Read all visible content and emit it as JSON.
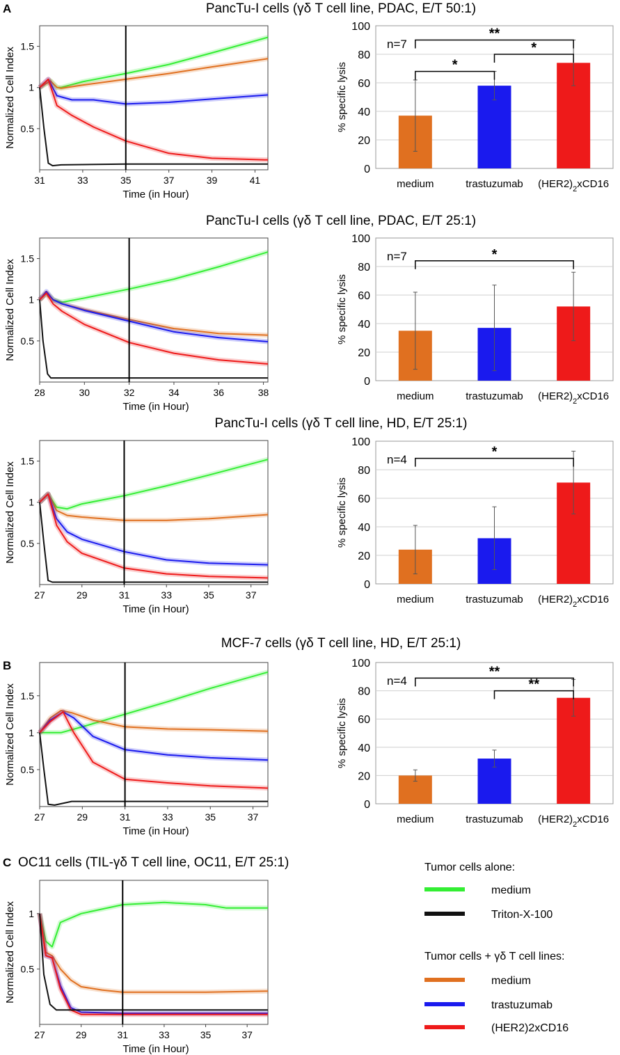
{
  "panel_labels": [
    "A",
    "B",
    "C"
  ],
  "legend": {
    "group1_title": "Tumor cells alone:",
    "group1_items": [
      {
        "label": "medium",
        "color": "#33ee33"
      },
      {
        "label": "Triton-X-100",
        "color": "#111111"
      }
    ],
    "group2_title": "Tumor cells + γδ T cell lines:",
    "group2_items": [
      {
        "label": "medium",
        "color": "#e07020"
      },
      {
        "label": "trastuzumab",
        "color": "#1a1aee"
      },
      {
        "label": "(HER2)2xCD16",
        "color": "#ee1a1a"
      }
    ]
  },
  "colors": {
    "green": "#33ee33",
    "orange": "#e07020",
    "blue": "#1a1aee",
    "red": "#ee1a1a",
    "black": "#111111"
  },
  "chart_data": [
    {
      "id": "A1",
      "title": "PancTu-I cells (γδ T cell line, PDAC, E/T 50:1)",
      "line": {
        "type": "line",
        "xlabel": "Time (in Hour)",
        "ylabel": "Normalized Cell Index",
        "xlim": [
          31,
          41.6
        ],
        "ylim": [
          0,
          1.75
        ],
        "xticks": [
          31,
          33,
          35,
          37,
          39,
          41
        ],
        "yticks": [
          0.5,
          1,
          1.5
        ],
        "marker_x": 35,
        "grid": false,
        "series": [
          {
            "name": "medium",
            "color": "green",
            "x": [
              31,
              31.5,
              31.8,
              32,
              33,
              35,
              37,
              39,
              41.6
            ],
            "y": [
              1.0,
              1.08,
              1.0,
              1.0,
              1.07,
              1.17,
              1.28,
              1.42,
              1.61
            ]
          },
          {
            "name": "+γδ medium",
            "color": "orange",
            "x": [
              31,
              31.5,
              31.8,
              32,
              33,
              35,
              37,
              39,
              41.6
            ],
            "y": [
              1.0,
              1.08,
              1.0,
              0.99,
              1.03,
              1.1,
              1.17,
              1.25,
              1.35
            ]
          },
          {
            "name": "+γδ trastuzumab",
            "color": "blue",
            "x": [
              31,
              31.4,
              31.8,
              32.5,
              33.5,
              35,
              37,
              39,
              41.6
            ],
            "y": [
              1.0,
              1.1,
              0.9,
              0.85,
              0.85,
              0.8,
              0.82,
              0.86,
              0.91
            ]
          },
          {
            "name": "+γδ (HER2)2xCD16",
            "color": "red",
            "x": [
              31,
              31.4,
              31.8,
              32.5,
              33.5,
              35,
              37,
              39,
              41.6
            ],
            "y": [
              1.0,
              1.1,
              0.78,
              0.66,
              0.52,
              0.35,
              0.2,
              0.14,
              0.12
            ]
          },
          {
            "name": "Triton-X-100",
            "color": "black",
            "x": [
              31,
              31.2,
              31.4,
              31.6,
              32,
              35,
              41.6
            ],
            "y": [
              1.0,
              0.5,
              0.08,
              0.05,
              0.06,
              0.07,
              0.07
            ]
          }
        ]
      },
      "bar": {
        "type": "bar",
        "ylabel": "% specific lysis",
        "ylim": [
          0,
          100
        ],
        "yticks": [
          0,
          20,
          40,
          60,
          80,
          100
        ],
        "categories": [
          "medium",
          "trastuzumab",
          "(HER2)2xCD16"
        ],
        "values": [
          37,
          58,
          74
        ],
        "errors": [
          25,
          10,
          16
        ],
        "colors": [
          "orange",
          "blue",
          "red"
        ],
        "n_label": "n=7",
        "brackets": [
          {
            "from": 0,
            "to": 2,
            "y": 90,
            "stars": "**"
          },
          {
            "from": 0,
            "to": 1,
            "y": 68,
            "stars": "*"
          },
          {
            "from": 1,
            "to": 2,
            "y": 80,
            "stars": "*"
          }
        ]
      }
    },
    {
      "id": "A2",
      "title": "PancTu-I cells (γδ T cell line, PDAC, E/T 25:1)",
      "line": {
        "type": "line",
        "xlabel": "Time (in Hour)",
        "ylabel": "Normalized Cell Index",
        "xlim": [
          28,
          38.2
        ],
        "ylim": [
          0,
          1.75
        ],
        "xticks": [
          28,
          30,
          32,
          34,
          36,
          38
        ],
        "yticks": [
          0.5,
          1,
          1.5
        ],
        "marker_x": 32,
        "grid": false,
        "series": [
          {
            "name": "medium",
            "color": "green",
            "x": [
              28,
              28.3,
              28.6,
              29,
              30,
              32,
              34,
              36,
              38.2
            ],
            "y": [
              1.0,
              1.08,
              1.0,
              0.97,
              1.02,
              1.13,
              1.25,
              1.4,
              1.58
            ]
          },
          {
            "name": "+γδ medium",
            "color": "orange",
            "x": [
              28,
              28.3,
              28.6,
              29,
              30,
              32,
              34,
              36,
              38.2
            ],
            "y": [
              1.0,
              1.08,
              1.0,
              0.95,
              0.88,
              0.76,
              0.65,
              0.59,
              0.57
            ]
          },
          {
            "name": "+γδ trastuzumab",
            "color": "blue",
            "x": [
              28,
              28.3,
              28.6,
              29,
              30,
              32,
              34,
              36,
              38.2
            ],
            "y": [
              1.0,
              1.1,
              1.0,
              0.95,
              0.87,
              0.74,
              0.61,
              0.54,
              0.49
            ]
          },
          {
            "name": "+γδ (HER2)2xCD16",
            "color": "red",
            "x": [
              28,
              28.3,
              28.6,
              29,
              30,
              32,
              34,
              36,
              38.2
            ],
            "y": [
              1.0,
              1.08,
              0.95,
              0.86,
              0.7,
              0.48,
              0.35,
              0.27,
              0.22
            ]
          },
          {
            "name": "Triton-X-100",
            "color": "black",
            "x": [
              28,
              28.15,
              28.35,
              28.5,
              29,
              32,
              38.2
            ],
            "y": [
              1.0,
              0.5,
              0.1,
              0.05,
              0.05,
              0.05,
              0.05
            ]
          }
        ]
      },
      "bar": {
        "type": "bar",
        "ylabel": "% specific lysis",
        "ylim": [
          0,
          100
        ],
        "yticks": [
          0,
          20,
          40,
          60,
          80,
          100
        ],
        "categories": [
          "medium",
          "trastuzumab",
          "(HER2)2xCD16"
        ],
        "values": [
          35,
          37,
          52
        ],
        "errors": [
          27,
          30,
          24
        ],
        "colors": [
          "orange",
          "blue",
          "red"
        ],
        "n_label": "n=7",
        "brackets": [
          {
            "from": 0,
            "to": 2,
            "y": 84,
            "stars": "*"
          }
        ]
      }
    },
    {
      "id": "A3",
      "title": "PancTu-I cells (γδ T cell line, HD, E/T 25:1)",
      "line": {
        "type": "line",
        "xlabel": "Time (in Hour)",
        "ylabel": "Normalized Cell Index",
        "xlim": [
          27,
          37.8
        ],
        "ylim": [
          0,
          1.75
        ],
        "xticks": [
          27,
          29,
          31,
          33,
          35,
          37
        ],
        "yticks": [
          0.5,
          1,
          1.5
        ],
        "marker_x": 31,
        "grid": false,
        "series": [
          {
            "name": "medium",
            "color": "green",
            "x": [
              27,
              27.4,
              27.8,
              28.3,
              29,
              31,
              33,
              35,
              37.8
            ],
            "y": [
              1.0,
              1.1,
              0.94,
              0.92,
              0.98,
              1.08,
              1.2,
              1.33,
              1.52
            ]
          },
          {
            "name": "+γδ medium",
            "color": "orange",
            "x": [
              27,
              27.4,
              27.8,
              28.3,
              29,
              31,
              33,
              35,
              37.8
            ],
            "y": [
              1.0,
              1.1,
              0.9,
              0.84,
              0.82,
              0.78,
              0.78,
              0.8,
              0.85
            ]
          },
          {
            "name": "+γδ trastuzumab",
            "color": "blue",
            "x": [
              27,
              27.4,
              27.8,
              28.3,
              29,
              31,
              33,
              35,
              37.8
            ],
            "y": [
              1.0,
              1.1,
              0.8,
              0.64,
              0.55,
              0.4,
              0.3,
              0.26,
              0.24
            ]
          },
          {
            "name": "+γδ (HER2)2xCD16",
            "color": "red",
            "x": [
              27,
              27.4,
              27.8,
              28.3,
              29,
              31,
              33,
              35,
              37.8
            ],
            "y": [
              1.0,
              1.1,
              0.72,
              0.52,
              0.38,
              0.2,
              0.13,
              0.1,
              0.08
            ]
          },
          {
            "name": "Triton-X-100",
            "color": "black",
            "x": [
              27,
              27.2,
              27.4,
              27.6,
              28,
              31,
              37.8
            ],
            "y": [
              1.0,
              0.5,
              0.05,
              0.03,
              0.03,
              0.03,
              0.03
            ]
          }
        ]
      },
      "bar": {
        "type": "bar",
        "ylabel": "% specific lysis",
        "ylim": [
          0,
          100
        ],
        "yticks": [
          0,
          20,
          40,
          60,
          80,
          100
        ],
        "categories": [
          "medium",
          "trastuzumab",
          "(HER2)2xCD16"
        ],
        "values": [
          24,
          32,
          71
        ],
        "errors": [
          17,
          22,
          22
        ],
        "colors": [
          "orange",
          "blue",
          "red"
        ],
        "n_label": "n=4",
        "brackets": [
          {
            "from": 0,
            "to": 2,
            "y": 88,
            "stars": "*"
          }
        ]
      }
    },
    {
      "id": "B",
      "title": "MCF-7 cells (γδ T cell line, HD, E/T 25:1)",
      "line": {
        "type": "line",
        "xlabel": "Time (in Hour)",
        "ylabel": "Normalized Cell Index",
        "xlim": [
          27,
          37.7
        ],
        "ylim": [
          0,
          1.95
        ],
        "xticks": [
          27,
          29,
          31,
          33,
          35,
          37
        ],
        "yticks": [
          0.5,
          1,
          1.5
        ],
        "marker_x": 31,
        "grid": false,
        "series": [
          {
            "name": "medium",
            "color": "green",
            "x": [
              27,
              28,
              29,
              31,
              33,
              35,
              37.7
            ],
            "y": [
              1.0,
              1.0,
              1.08,
              1.25,
              1.42,
              1.6,
              1.82
            ]
          },
          {
            "name": "+γδ medium",
            "color": "orange",
            "x": [
              27,
              27.5,
              28,
              28.5,
              29.5,
              31,
              33,
              35,
              37.7
            ],
            "y": [
              1.0,
              1.2,
              1.3,
              1.27,
              1.17,
              1.08,
              1.05,
              1.04,
              1.02
            ]
          },
          {
            "name": "+γδ trastuzumab",
            "color": "blue",
            "x": [
              27,
              27.5,
              28.1,
              28.6,
              29.5,
              31,
              33,
              35,
              37.7
            ],
            "y": [
              1.0,
              1.17,
              1.28,
              1.2,
              0.95,
              0.77,
              0.7,
              0.66,
              0.63
            ]
          },
          {
            "name": "+γδ (HER2)2xCD16",
            "color": "red",
            "x": [
              27,
              27.5,
              28.1,
              28.6,
              29.5,
              31,
              33,
              35,
              37.7
            ],
            "y": [
              1.0,
              1.15,
              1.28,
              1.0,
              0.6,
              0.37,
              0.32,
              0.28,
              0.25
            ]
          },
          {
            "name": "Triton-X-100",
            "color": "black",
            "x": [
              27,
              27.2,
              27.4,
              27.7,
              28.5,
              31,
              37.7
            ],
            "y": [
              1.0,
              0.5,
              0.03,
              0.02,
              0.07,
              0.07,
              0.07
            ]
          }
        ]
      },
      "bar": {
        "type": "bar",
        "ylabel": "% specific lysis",
        "ylim": [
          0,
          100
        ],
        "yticks": [
          0,
          20,
          40,
          60,
          80,
          100
        ],
        "categories": [
          "medium",
          "trastuzumab",
          "(HER2)2xCD16"
        ],
        "values": [
          20,
          32,
          75
        ],
        "errors": [
          4,
          6,
          13
        ],
        "colors": [
          "orange",
          "blue",
          "red"
        ],
        "n_label": "n=4",
        "brackets": [
          {
            "from": 0,
            "to": 2,
            "y": 89,
            "stars": "**"
          },
          {
            "from": 1,
            "to": 2,
            "y": 80,
            "stars": "**"
          }
        ]
      }
    },
    {
      "id": "C",
      "title": "OC11 cells (TIL-γδ T cell line, OC11, E/T 25:1)",
      "line": {
        "type": "line",
        "xlabel": "Time (in Hour)",
        "ylabel": "Normalized Cell Index",
        "xlim": [
          27,
          38
        ],
        "ylim": [
          0,
          1.3
        ],
        "xticks": [
          27,
          29,
          31,
          33,
          35,
          37
        ],
        "yticks": [
          0.5,
          1
        ],
        "marker_x": 31,
        "grid": false,
        "series": [
          {
            "name": "medium",
            "color": "green",
            "x": [
              27,
              27.3,
              27.6,
              28,
              29,
              31,
              33,
              35,
              36,
              38
            ],
            "y": [
              1.0,
              0.75,
              0.7,
              0.92,
              1.0,
              1.08,
              1.1,
              1.08,
              1.05,
              1.05
            ]
          },
          {
            "name": "+γδ medium",
            "color": "orange",
            "x": [
              27,
              27.3,
              27.6,
              28,
              28.5,
              29,
              30,
              31,
              33,
              35,
              38
            ],
            "y": [
              1.0,
              0.65,
              0.62,
              0.5,
              0.4,
              0.34,
              0.31,
              0.29,
              0.29,
              0.29,
              0.3
            ]
          },
          {
            "name": "+γδ trastuzumab",
            "color": "blue",
            "x": [
              27,
              27.3,
              27.6,
              28,
              28.5,
              29,
              31,
              38
            ],
            "y": [
              1.0,
              0.62,
              0.6,
              0.35,
              0.15,
              0.11,
              0.1,
              0.1
            ]
          },
          {
            "name": "+γδ (HER2)2xCD16",
            "color": "red",
            "x": [
              27,
              27.3,
              27.6,
              28,
              28.5,
              29,
              31,
              38
            ],
            "y": [
              1.0,
              0.62,
              0.6,
              0.32,
              0.13,
              0.09,
              0.09,
              0.09
            ]
          },
          {
            "name": "Triton-X-100",
            "color": "black",
            "x": [
              27,
              27.2,
              27.5,
              27.8,
              28.5,
              31,
              38
            ],
            "y": [
              1.0,
              0.45,
              0.18,
              0.13,
              0.13,
              0.13,
              0.13
            ]
          }
        ]
      }
    }
  ]
}
